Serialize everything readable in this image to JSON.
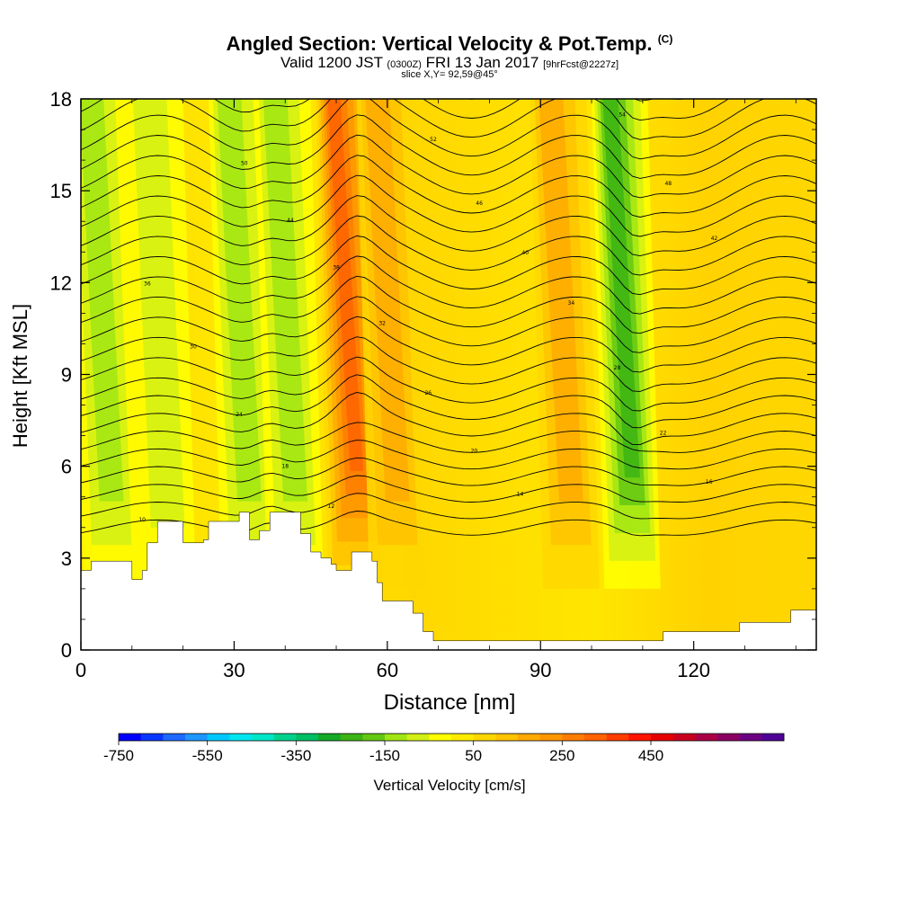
{
  "chart_data": {
    "type": "contour",
    "title": "Angled Section: Vertical Velocity & Pot.Temp.",
    "title_unit": "(C)",
    "subtitle_valid": "Valid 1200 JST",
    "subtitle_utc": "(0300Z)",
    "subtitle_date": "FRI 13 Jan 2017",
    "subtitle_fcst": "[9hrFcst@2227z]",
    "slice": "slice X,Y= 92,59@45°",
    "xlabel": "Distance [nm]",
    "ylabel": "Height [Kft MSL]",
    "xlim": [
      0,
      144
    ],
    "ylim": [
      0,
      18
    ],
    "xticks": [
      0,
      30,
      60,
      90,
      120
    ],
    "yticks": [
      0,
      3,
      6,
      9,
      12,
      15,
      18
    ],
    "terrain_kft": [
      [
        0,
        2.6
      ],
      [
        2,
        2.9
      ],
      [
        8,
        2.9
      ],
      [
        10,
        2.3
      ],
      [
        12,
        2.6
      ],
      [
        13,
        3.5
      ],
      [
        15,
        4.2
      ],
      [
        18,
        4.2
      ],
      [
        20,
        3.5
      ],
      [
        24,
        3.6
      ],
      [
        25,
        4.2
      ],
      [
        28,
        4.2
      ],
      [
        31,
        4.5
      ],
      [
        33,
        3.6
      ],
      [
        35,
        3.9
      ],
      [
        37,
        4.5
      ],
      [
        41,
        4.5
      ],
      [
        43,
        3.8
      ],
      [
        45,
        3.2
      ],
      [
        47,
        3.0
      ],
      [
        49,
        2.8
      ],
      [
        50,
        2.6
      ],
      [
        53,
        3.2
      ],
      [
        56,
        3.2
      ],
      [
        57,
        2.9
      ],
      [
        58,
        2.2
      ],
      [
        59,
        1.6
      ],
      [
        63,
        1.6
      ],
      [
        65,
        1.2
      ],
      [
        67,
        0.6
      ],
      [
        69,
        0.3
      ],
      [
        71,
        0.3
      ],
      [
        100,
        0.3
      ],
      [
        112,
        0.3
      ],
      [
        114,
        0.6
      ],
      [
        128,
        0.6
      ],
      [
        129,
        0.9
      ],
      [
        138,
        0.9
      ],
      [
        139,
        1.3
      ],
      [
        144,
        1.3
      ]
    ],
    "updrafts": [
      {
        "center_nm": 54,
        "peak_cm_s": 300
      },
      {
        "center_nm": 62,
        "peak_cm_s": 150
      },
      {
        "center_nm": 96,
        "peak_cm_s": 150
      }
    ],
    "downdrafts": [
      {
        "center_nm": 6,
        "peak_cm_s": -150
      },
      {
        "center_nm": 17,
        "peak_cm_s": -100
      },
      {
        "center_nm": 33,
        "peak_cm_s": -150
      },
      {
        "center_nm": 42,
        "peak_cm_s": -150
      },
      {
        "center_nm": 108,
        "peak_cm_s": -250
      }
    ],
    "theta_labels": [
      "10",
      "12",
      "14",
      "16",
      "18",
      "20",
      "22",
      "24",
      "26",
      "28",
      "30",
      "32",
      "34",
      "36",
      "38",
      "40",
      "42",
      "44",
      "46",
      "48",
      "50",
      "52",
      "54",
      "56",
      "58"
    ],
    "colorbar": {
      "label": "Vertical Velocity [cm/s]",
      "tick_labels": [
        "-750",
        "-550",
        "-350",
        "-150",
        "50",
        "250",
        "450"
      ],
      "colors": [
        "#0000ff",
        "#0a37ff",
        "#1e69ff",
        "#1e96ff",
        "#00c8ff",
        "#00e6f0",
        "#00e6c8",
        "#00d28c",
        "#00be64",
        "#14aa28",
        "#3cb414",
        "#64c814",
        "#a0e614",
        "#d2f014",
        "#ffff00",
        "#ffeb00",
        "#ffd700",
        "#ffc300",
        "#ffaa00",
        "#ff9600",
        "#ff7d00",
        "#ff6400",
        "#ff3c00",
        "#ff1400",
        "#e60000",
        "#c8001e",
        "#aa0046",
        "#8c0064",
        "#6e0082",
        "#500096"
      ]
    }
  }
}
